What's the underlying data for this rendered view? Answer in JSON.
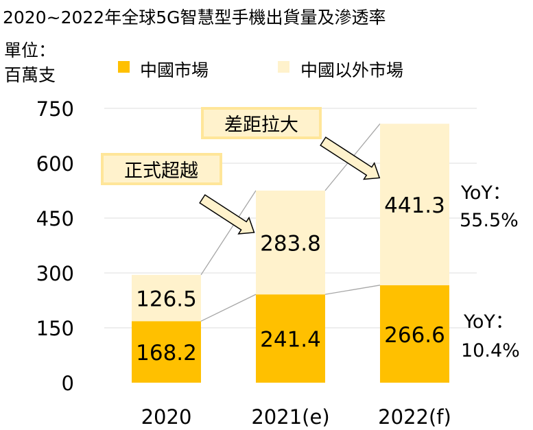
{
  "chart_data": {
    "type": "bar",
    "stacked": true,
    "title": "2020~2022年全球5G智慧型手機出貨量及滲透率",
    "ylabel": [
      "單位：",
      "百萬支"
    ],
    "categories": [
      "2020",
      "2021(e)",
      "2022(f)"
    ],
    "series": [
      {
        "name": "中國市場",
        "values": [
          168.2,
          241.4,
          266.6
        ],
        "labels": [
          "168.2",
          "241.4",
          "266.6"
        ],
        "color": "#FFC000"
      },
      {
        "name": "中國以外市場",
        "values": [
          126.5,
          283.8,
          441.3
        ],
        "labels": [
          "126.5",
          "283.8",
          "441.3"
        ],
        "color": "#FFF2CC"
      }
    ],
    "ylim": [
      0,
      750
    ],
    "yticks": [
      "0",
      "150",
      "300",
      "450",
      "600",
      "750"
    ],
    "grid": true,
    "legend": "top",
    "annotations": {
      "callout1": "正式超越",
      "callout2": "差距拉大",
      "yoy_outside": [
        "YoY：",
        "55.5%"
      ],
      "yoy_china": [
        "YoY：",
        "10.4%"
      ]
    }
  }
}
